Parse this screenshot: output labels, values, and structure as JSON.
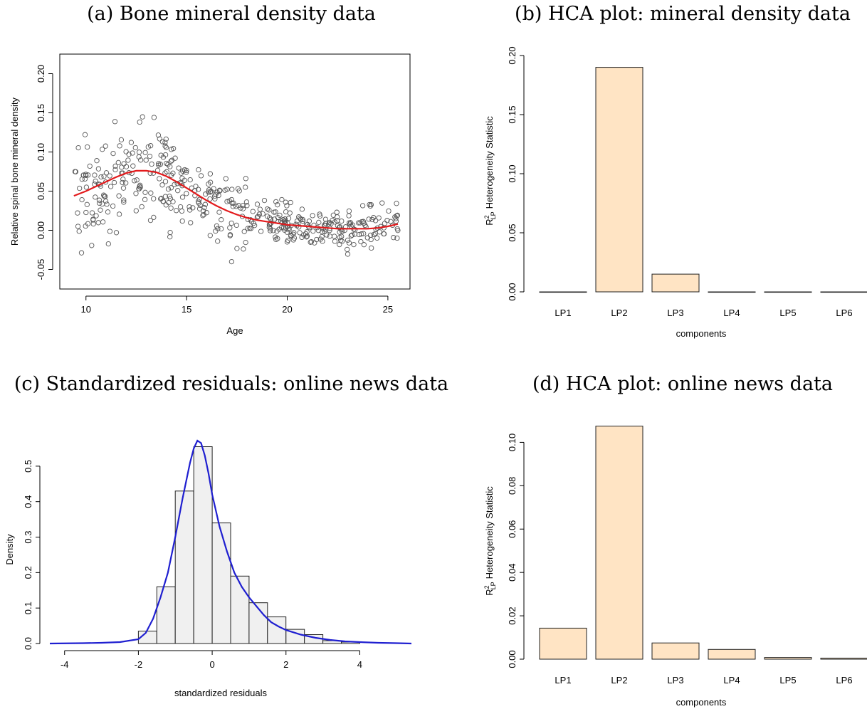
{
  "captions": {
    "a": "(a) Bone mineral density data",
    "b": "(b) HCA plot: mineral density data",
    "c": "(c) Standardized residuals: online news data",
    "d": "(d) HCA plot: online news data"
  },
  "ylabel_rest": "Heterogeneity Statistic",
  "chart_data": [
    {
      "type": "scatter",
      "id": "a",
      "xlabel": "Age",
      "ylabel": "Relative spinal bone mineral density",
      "xlim": [
        8.7,
        26.1
      ],
      "ylim": [
        -0.075,
        0.225
      ],
      "xticks": [
        10,
        15,
        20,
        25
      ],
      "yticks": [
        -0.05,
        0,
        0.05,
        0.1,
        0.15,
        0.2
      ],
      "ytick_labels": [
        "-0.05",
        "0.00",
        "0.05",
        "0.10",
        "0.15",
        "0.20"
      ],
      "points_seed": 7,
      "points_count": 485,
      "fit_curve": {
        "color": "#e31a1c",
        "x": [
          9.4,
          10,
          10.5,
          11,
          11.5,
          12,
          12.5,
          13,
          13.5,
          14,
          14.5,
          15,
          15.5,
          16,
          16.5,
          17,
          17.5,
          18,
          18.5,
          19,
          19.5,
          20,
          20.5,
          21,
          21.5,
          22,
          22.5,
          23,
          23.5,
          24,
          24.5,
          25,
          25.5
        ],
        "y": [
          0.044,
          0.05,
          0.056,
          0.062,
          0.068,
          0.073,
          0.076,
          0.076,
          0.074,
          0.069,
          0.062,
          0.054,
          0.046,
          0.038,
          0.031,
          0.025,
          0.02,
          0.016,
          0.013,
          0.011,
          0.009,
          0.007,
          0.006,
          0.005,
          0.004,
          0.003,
          0.002,
          0.002,
          0.002,
          0.002,
          0.003,
          0.005,
          0.008
        ]
      }
    },
    {
      "type": "bar",
      "id": "b",
      "categories": [
        "LP1",
        "LP2",
        "LP3",
        "LP4",
        "LP5",
        "LP6"
      ],
      "values": [
        0.0,
        0.19,
        0.015,
        0.0,
        0.0,
        0.0
      ],
      "xlabel": "components",
      "ylim": [
        0,
        0.2
      ],
      "yticks": [
        0,
        0.05,
        0.1,
        0.15,
        0.2
      ],
      "ytick_labels": [
        "0.00",
        "0.05",
        "0.10",
        "0.15",
        "0.20"
      ],
      "bar_color": "#ffe4c4"
    },
    {
      "type": "bar",
      "id": "c",
      "subtype": "histogram",
      "xlabel": "standardized residuals",
      "ylabel": "Density",
      "xlim": [
        -4.4,
        5.4
      ],
      "ylim": [
        0,
        0.57
      ],
      "xticks": [
        -4,
        -2,
        0,
        2,
        4
      ],
      "yticks": [
        0,
        0.1,
        0.2,
        0.3,
        0.4,
        0.5
      ],
      "ytick_labels": [
        "0.0",
        "0.1",
        "0.2",
        "0.3",
        "0.4",
        "0.5"
      ],
      "bins": [
        {
          "from": -2.0,
          "to": -1.5,
          "density": 0.035
        },
        {
          "from": -1.5,
          "to": -1.0,
          "density": 0.16
        },
        {
          "from": -1.0,
          "to": -0.5,
          "density": 0.43
        },
        {
          "from": -0.5,
          "to": 0.0,
          "density": 0.555
        },
        {
          "from": 0.0,
          "to": 0.5,
          "density": 0.34
        },
        {
          "from": 0.5,
          "to": 1.0,
          "density": 0.19
        },
        {
          "from": 1.0,
          "to": 1.5,
          "density": 0.115
        },
        {
          "from": 1.5,
          "to": 2.0,
          "density": 0.075
        },
        {
          "from": 2.0,
          "to": 2.5,
          "density": 0.04
        },
        {
          "from": 2.5,
          "to": 3.0,
          "density": 0.025
        },
        {
          "from": 3.0,
          "to": 3.5,
          "density": 0.008
        },
        {
          "from": 3.5,
          "to": 4.0,
          "density": 0.004
        }
      ],
      "bar_color": "#f0f0f0",
      "density_curve": {
        "color": "#1f1fd0",
        "x": [
          -4.4,
          -3.5,
          -3.0,
          -2.5,
          -2.0,
          -1.8,
          -1.6,
          -1.4,
          -1.2,
          -1.0,
          -0.8,
          -0.6,
          -0.5,
          -0.4,
          -0.3,
          -0.2,
          -0.1,
          0.0,
          0.2,
          0.4,
          0.6,
          0.8,
          1.0,
          1.2,
          1.4,
          1.6,
          1.8,
          2.0,
          2.4,
          2.8,
          3.2,
          3.6,
          4.0,
          4.5,
          5.0,
          5.4
        ],
        "y": [
          0.0,
          0.001,
          0.002,
          0.004,
          0.012,
          0.03,
          0.07,
          0.13,
          0.2,
          0.3,
          0.41,
          0.51,
          0.55,
          0.572,
          0.565,
          0.53,
          0.48,
          0.42,
          0.33,
          0.26,
          0.2,
          0.16,
          0.13,
          0.105,
          0.08,
          0.06,
          0.048,
          0.038,
          0.025,
          0.016,
          0.01,
          0.006,
          0.004,
          0.002,
          0.001,
          0.0
        ]
      }
    },
    {
      "type": "bar",
      "id": "d",
      "categories": [
        "LP1",
        "LP2",
        "LP3",
        "LP4",
        "LP5",
        "LP6"
      ],
      "values": [
        0.0143,
        0.1075,
        0.0075,
        0.0045,
        0.0008,
        0.0005
      ],
      "xlabel": "components",
      "ylim": [
        0,
        0.109
      ],
      "yticks": [
        0,
        0.02,
        0.04,
        0.06,
        0.08,
        0.1
      ],
      "ytick_labels": [
        "0.00",
        "0.02",
        "0.04",
        "0.06",
        "0.08",
        "0.10"
      ],
      "bar_color": "#ffe4c4"
    }
  ]
}
